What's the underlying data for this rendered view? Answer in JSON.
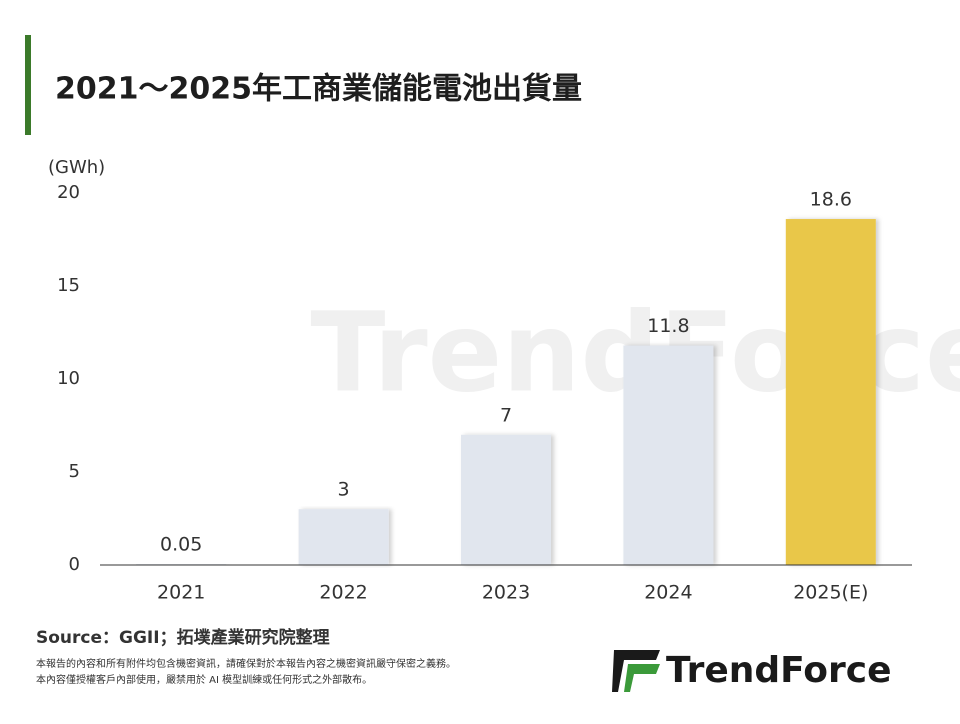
{
  "chart_data": {
    "type": "bar",
    "title": "2021～2025年工商業儲能電池出貨量",
    "y_label": "(GWh)",
    "categories": [
      "2021",
      "2022",
      "2023",
      "2024",
      "2025(E)"
    ],
    "values": [
      0.05,
      3,
      7,
      11.8,
      18.6
    ],
    "colors": [
      "#e1e6ee",
      "#e1e6ee",
      "#e1e6ee",
      "#e1e6ee",
      "#e9c74a"
    ],
    "ylim": [
      0,
      20
    ],
    "yticks": [
      0,
      5,
      10,
      15,
      20
    ],
    "grid": false
  },
  "source": "Source：GGII；拓墣產業研究院整理",
  "notes": [
    "本報告的內容和所有附件均包含機密資訊，請確保對於本報告內容之機密資訊嚴守保密之義務。",
    "本內容僅授權客戶內部使用，嚴禁用於 AI 模型訓練或任何形式之外部散布。"
  ],
  "logo": "TrendForce"
}
